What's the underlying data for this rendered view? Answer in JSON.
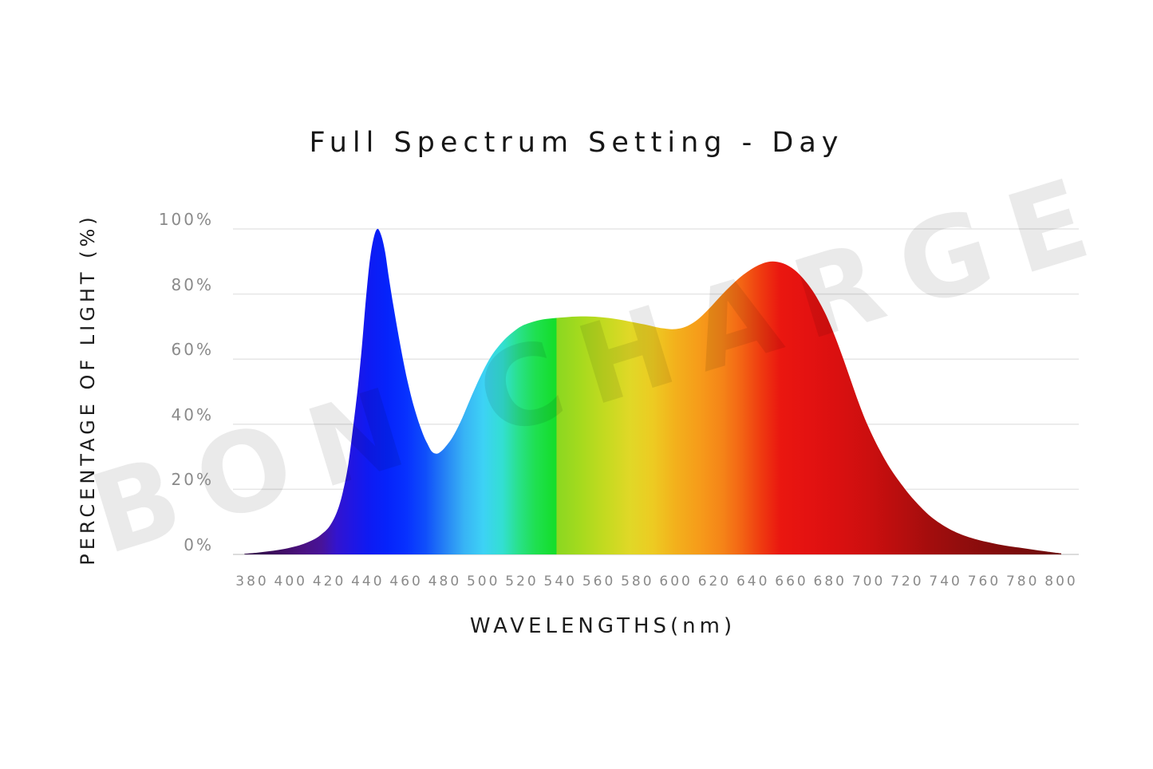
{
  "header": {
    "title": "Full Spectrum Setting - Day"
  },
  "watermark": {
    "text": "BON CHARGE"
  },
  "chart_data": {
    "type": "area",
    "title": "Full Spectrum Setting - Day",
    "xlabel": "WAVELENGTHS(nm)",
    "ylabel": "PERCENTAGE OF LIGHT (%)",
    "xlim": [
      380,
      800
    ],
    "ylim": [
      0,
      100
    ],
    "grid": true,
    "legend": "none",
    "x_ticks": [
      380,
      400,
      420,
      440,
      460,
      480,
      500,
      520,
      540,
      560,
      580,
      600,
      620,
      640,
      660,
      680,
      700,
      720,
      740,
      760,
      780,
      800
    ],
    "y_ticks": [
      {
        "value": 0,
        "label": "0%"
      },
      {
        "value": 20,
        "label": "20%"
      },
      {
        "value": 40,
        "label": "40%"
      },
      {
        "value": 60,
        "label": "60%"
      },
      {
        "value": 80,
        "label": "80%"
      },
      {
        "value": 100,
        "label": "100%"
      }
    ],
    "points": [
      [
        376,
        0.2
      ],
      [
        382,
        0.5
      ],
      [
        388,
        0.9
      ],
      [
        394,
        1.4
      ],
      [
        400,
        2.1
      ],
      [
        406,
        3.1
      ],
      [
        412,
        4.6
      ],
      [
        416,
        6.2
      ],
      [
        420,
        8.5
      ],
      [
        424,
        13
      ],
      [
        427,
        19
      ],
      [
        430,
        28
      ],
      [
        433,
        42
      ],
      [
        435,
        52
      ],
      [
        437,
        64
      ],
      [
        439,
        78
      ],
      [
        441,
        90
      ],
      [
        443,
        97
      ],
      [
        445,
        100
      ],
      [
        447,
        98
      ],
      [
        449,
        93
      ],
      [
        451,
        85
      ],
      [
        454,
        74
      ],
      [
        457,
        64
      ],
      [
        460,
        55
      ],
      [
        463,
        47.5
      ],
      [
        466,
        41.5
      ],
      [
        469,
        36.5
      ],
      [
        471,
        34
      ],
      [
        473,
        31.8
      ],
      [
        475,
        31
      ],
      [
        477,
        31.2
      ],
      [
        480,
        32.8
      ],
      [
        484,
        36
      ],
      [
        488,
        40.5
      ],
      [
        492,
        46
      ],
      [
        496,
        51.5
      ],
      [
        500,
        56.5
      ],
      [
        504,
        60.8
      ],
      [
        508,
        64
      ],
      [
        512,
        66.6
      ],
      [
        516,
        68.6
      ],
      [
        520,
        70.2
      ],
      [
        526,
        71.5
      ],
      [
        531,
        72.2
      ],
      [
        537,
        72.6
      ],
      [
        543,
        72.9
      ],
      [
        549,
        73.1
      ],
      [
        555,
        73.1
      ],
      [
        561,
        72.9
      ],
      [
        567,
        72.5
      ],
      [
        573,
        71.9
      ],
      [
        579,
        71.2
      ],
      [
        585,
        70.5
      ],
      [
        590,
        69.8
      ],
      [
        594,
        69.4
      ],
      [
        598,
        69.2
      ],
      [
        602,
        69.4
      ],
      [
        606,
        70.2
      ],
      [
        610,
        71.6
      ],
      [
        614,
        73.6
      ],
      [
        618,
        76
      ],
      [
        622,
        78.6
      ],
      [
        626,
        81.1
      ],
      [
        630,
        83.4
      ],
      [
        634,
        85.5
      ],
      [
        638,
        87.2
      ],
      [
        642,
        88.6
      ],
      [
        646,
        89.6
      ],
      [
        650,
        90
      ],
      [
        654,
        89.7
      ],
      [
        658,
        88.8
      ],
      [
        662,
        87.2
      ],
      [
        666,
        84.8
      ],
      [
        670,
        81.8
      ],
      [
        674,
        78
      ],
      [
        678,
        73.4
      ],
      [
        682,
        67.8
      ],
      [
        686,
        61.5
      ],
      [
        690,
        54.8
      ],
      [
        694,
        48
      ],
      [
        698,
        41.8
      ],
      [
        702,
        36.5
      ],
      [
        706,
        31.8
      ],
      [
        710,
        27.6
      ],
      [
        714,
        24
      ],
      [
        718,
        20.8
      ],
      [
        722,
        17.8
      ],
      [
        726,
        15.2
      ],
      [
        730,
        12.8
      ],
      [
        734,
        10.8
      ],
      [
        738,
        9.2
      ],
      [
        742,
        7.8
      ],
      [
        747,
        6.4
      ],
      [
        752,
        5.3
      ],
      [
        758,
        4.3
      ],
      [
        764,
        3.5
      ],
      [
        771,
        2.7
      ],
      [
        778,
        2.1
      ],
      [
        785,
        1.5
      ],
      [
        792,
        0.9
      ],
      [
        800,
        0.3
      ]
    ],
    "gradient_stops": [
      {
        "nm": 380,
        "color": "#300a49"
      },
      {
        "nm": 394,
        "color": "#3f0d62"
      },
      {
        "nm": 406,
        "color": "#4a1180"
      },
      {
        "nm": 416,
        "color": "#481399"
      },
      {
        "nm": 424,
        "color": "#3214cf"
      },
      {
        "nm": 432,
        "color": "#2016e3"
      },
      {
        "nm": 440,
        "color": "#0f1af2"
      },
      {
        "nm": 450,
        "color": "#0523fb"
      },
      {
        "nm": 460,
        "color": "#0731ff"
      },
      {
        "nm": 470,
        "color": "#0f4efb"
      },
      {
        "nm": 480,
        "color": "#2581f5"
      },
      {
        "nm": 490,
        "color": "#38b3f5"
      },
      {
        "nm": 500,
        "color": "#3dd2f5"
      },
      {
        "nm": 510,
        "color": "#33dfd2"
      },
      {
        "nm": 518,
        "color": "#29e18c"
      },
      {
        "nm": 527,
        "color": "#1fe051"
      },
      {
        "nm": 536,
        "color": "#15de2e"
      },
      {
        "nm": 537.8,
        "color": "#13dd2b"
      },
      {
        "nm": 538.2,
        "color": "#8bd721"
      },
      {
        "nm": 550,
        "color": "#a4da1e"
      },
      {
        "nm": 563,
        "color": "#c3da20"
      },
      {
        "nm": 576,
        "color": "#e0d827"
      },
      {
        "nm": 588,
        "color": "#edcb22"
      },
      {
        "nm": 600,
        "color": "#f3b01c"
      },
      {
        "nm": 612,
        "color": "#f69c1a"
      },
      {
        "nm": 624,
        "color": "#f58418"
      },
      {
        "nm": 634,
        "color": "#f36414"
      },
      {
        "nm": 644,
        "color": "#ef3b10"
      },
      {
        "nm": 654,
        "color": "#ea1710"
      },
      {
        "nm": 668,
        "color": "#e41211"
      },
      {
        "nm": 684,
        "color": "#da1010"
      },
      {
        "nm": 700,
        "color": "#cc0f0f"
      },
      {
        "nm": 716,
        "color": "#b80e0e"
      },
      {
        "nm": 732,
        "color": "#a30d0d"
      },
      {
        "nm": 748,
        "color": "#920d0d"
      },
      {
        "nm": 764,
        "color": "#850c0c"
      },
      {
        "nm": 782,
        "color": "#780c0c"
      },
      {
        "nm": 800,
        "color": "#6c0b0b"
      }
    ],
    "colors": {
      "grid": "#e6e6e6",
      "axis_line": "#dcdcdc",
      "tick_text": "#8a8a8a",
      "label_text": "#1c1c1c",
      "background": "#ffffff"
    }
  }
}
